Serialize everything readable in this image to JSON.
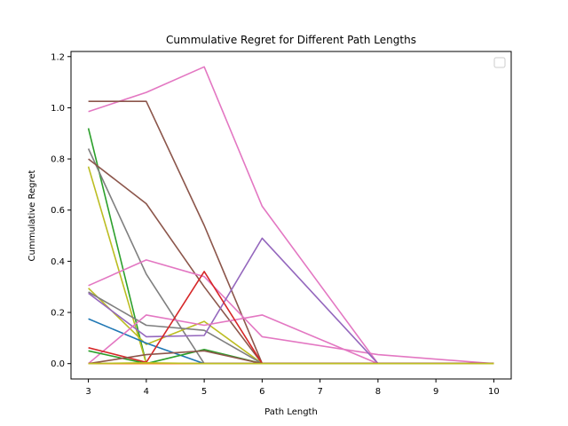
{
  "chart_data": {
    "type": "line",
    "title": "Cummulative Regret for Different Path Lengths",
    "xlabel": "Path Length",
    "ylabel": "Cummulative Regret",
    "xlim": [
      2.7,
      10.3
    ],
    "ylim": [
      -0.06,
      1.22
    ],
    "xticks": [
      3,
      4,
      5,
      6,
      7,
      8,
      9,
      10
    ],
    "yticks": [
      0.0,
      0.2,
      0.4,
      0.6,
      0.8,
      1.0,
      1.2
    ],
    "ytick_labels": [
      "0.0",
      "0.2",
      "0.4",
      "0.6",
      "0.8",
      "1.0",
      "1.2"
    ],
    "grid": false,
    "legend": "upper right (empty)",
    "series": [
      {
        "color": "#e377c2",
        "points": [
          [
            3,
            0.985
          ],
          [
            4,
            1.06
          ],
          [
            5,
            1.16
          ],
          [
            6,
            0.615
          ],
          [
            8,
            0.0
          ],
          [
            10,
            0.0
          ]
        ]
      },
      {
        "color": "#8c564b",
        "points": [
          [
            3,
            1.025
          ],
          [
            4,
            1.025
          ],
          [
            5,
            0.54
          ],
          [
            6,
            0.0
          ],
          [
            10,
            0.0
          ]
        ]
      },
      {
        "color": "#2ca02c",
        "points": [
          [
            3,
            0.92
          ],
          [
            4,
            0.0
          ],
          [
            5,
            0.0
          ],
          [
            6,
            0.0
          ],
          [
            10,
            0.0
          ]
        ]
      },
      {
        "color": "#7f7f7f",
        "points": [
          [
            3,
            0.84
          ],
          [
            4,
            0.35
          ],
          [
            5,
            0.0
          ],
          [
            6,
            0.0
          ],
          [
            10,
            0.0
          ]
        ]
      },
      {
        "color": "#8c564b",
        "points": [
          [
            3,
            0.8
          ],
          [
            4,
            0.625
          ],
          [
            5,
            0.3
          ],
          [
            6,
            0.0
          ],
          [
            10,
            0.0
          ]
        ]
      },
      {
        "color": "#bcbd22",
        "points": [
          [
            3,
            0.77
          ],
          [
            4,
            0.0
          ],
          [
            5,
            0.0
          ],
          [
            6,
            0.0
          ],
          [
            10,
            0.0
          ]
        ]
      },
      {
        "color": "#e377c2",
        "points": [
          [
            3,
            0.305
          ],
          [
            4,
            0.405
          ],
          [
            5,
            0.34
          ],
          [
            6,
            0.105
          ],
          [
            8,
            0.035
          ],
          [
            10,
            0.0
          ]
        ]
      },
      {
        "color": "#bcbd22",
        "points": [
          [
            3,
            0.295
          ],
          [
            4,
            0.075
          ],
          [
            5,
            0.165
          ],
          [
            6,
            0.0
          ],
          [
            10,
            0.0
          ]
        ]
      },
      {
        "color": "#7f7f7f",
        "points": [
          [
            3,
            0.28
          ],
          [
            4,
            0.15
          ],
          [
            5,
            0.13
          ],
          [
            6,
            0.0
          ],
          [
            10,
            0.0
          ]
        ]
      },
      {
        "color": "#9467bd",
        "points": [
          [
            3,
            0.275
          ],
          [
            4,
            0.105
          ],
          [
            5,
            0.11
          ],
          [
            6,
            0.49
          ],
          [
            8,
            0.0
          ],
          [
            10,
            0.0
          ]
        ]
      },
      {
        "color": "#1f77b4",
        "points": [
          [
            3,
            0.175
          ],
          [
            4,
            0.08
          ],
          [
            5,
            0.0
          ],
          [
            6,
            0.0
          ],
          [
            10,
            0.0
          ]
        ]
      },
      {
        "color": "#e377c2",
        "points": [
          [
            3,
            0.0
          ],
          [
            4,
            0.19
          ],
          [
            5,
            0.15
          ],
          [
            6,
            0.19
          ],
          [
            8,
            0.0
          ],
          [
            10,
            0.0
          ]
        ]
      },
      {
        "color": "#d62728",
        "points": [
          [
            3,
            0.062
          ],
          [
            4,
            0.005
          ],
          [
            5,
            0.36
          ],
          [
            6,
            0.0
          ],
          [
            10,
            0.0
          ]
        ]
      },
      {
        "color": "#2ca02c",
        "points": [
          [
            3,
            0.05
          ],
          [
            4,
            0.0
          ],
          [
            5,
            0.055
          ],
          [
            6,
            0.0
          ],
          [
            10,
            0.0
          ]
        ]
      },
      {
        "color": "#8c564b",
        "points": [
          [
            3,
            0.0
          ],
          [
            4,
            0.035
          ],
          [
            5,
            0.05
          ],
          [
            6,
            0.0
          ],
          [
            10,
            0.0
          ]
        ]
      },
      {
        "color": "#1f77b4",
        "points": [
          [
            3,
            0.0
          ],
          [
            4,
            0.0
          ],
          [
            5,
            0.0
          ],
          [
            10,
            0.0
          ]
        ]
      },
      {
        "color": "#d62728",
        "points": [
          [
            3,
            0.0
          ],
          [
            4,
            0.0
          ],
          [
            5,
            0.0
          ],
          [
            10,
            0.0
          ]
        ]
      },
      {
        "color": "#ff7f0e",
        "points": [
          [
            3,
            0.0
          ],
          [
            4,
            0.0
          ],
          [
            5,
            0.0
          ],
          [
            6,
            0.0
          ],
          [
            10,
            0.0
          ]
        ]
      },
      {
        "color": "#bcbd22",
        "points": [
          [
            3,
            0.0
          ],
          [
            4,
            0.003
          ],
          [
            5,
            0.0
          ],
          [
            6,
            0.0
          ],
          [
            10,
            0.0
          ]
        ]
      }
    ]
  }
}
